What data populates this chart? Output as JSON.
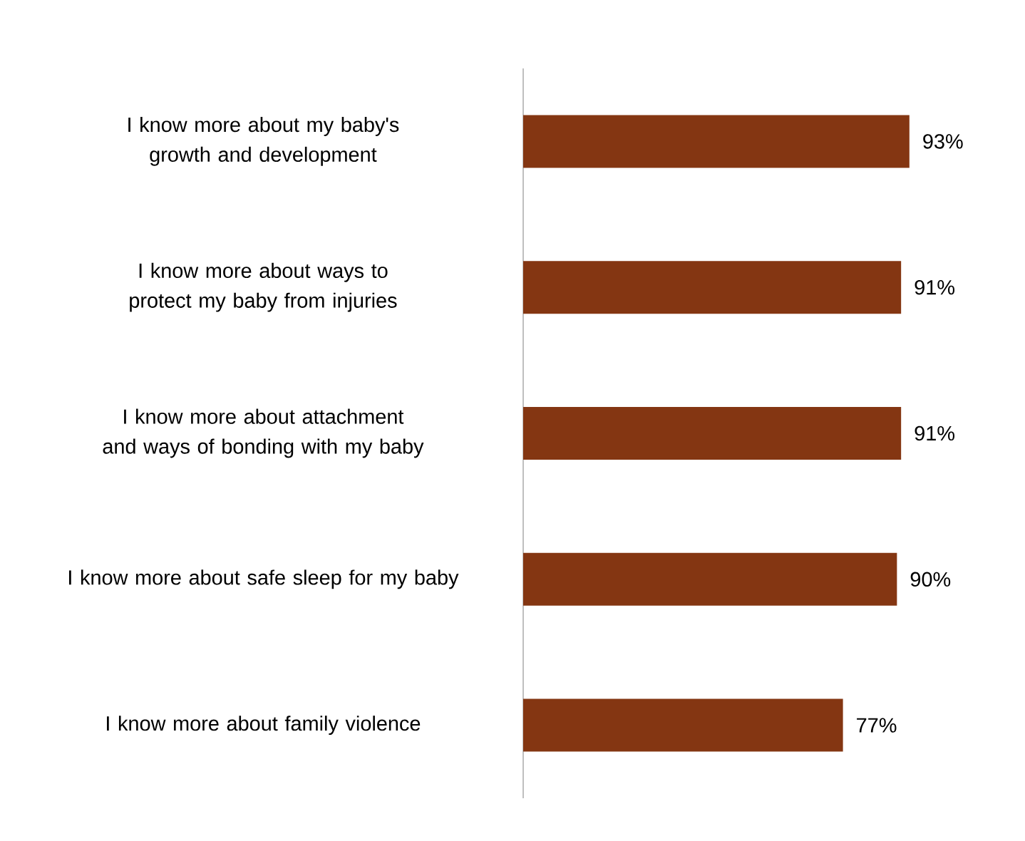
{
  "chart_data": {
    "type": "bar",
    "orientation": "horizontal",
    "categories": [
      "I know more about my baby's growth and development",
      "I know more about ways to protect my baby from injuries",
      "I know more about attachment and ways of bonding with my baby",
      "I know more about safe sleep for my baby",
      "I know more about family violence"
    ],
    "values": [
      93,
      91,
      91,
      90,
      77
    ],
    "value_labels": [
      "93%",
      "91%",
      "91%",
      "90%",
      "77%"
    ],
    "color": "#843612"
  }
}
